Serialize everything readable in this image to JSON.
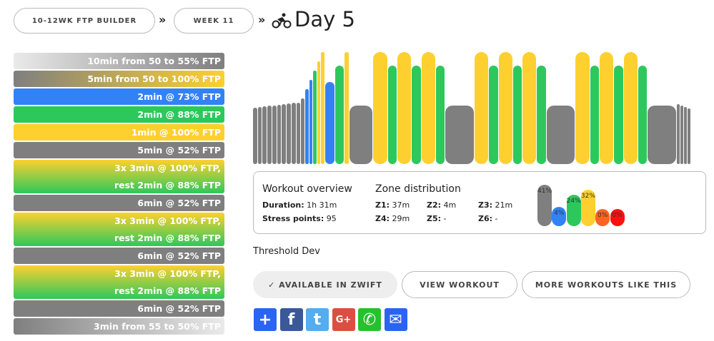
{
  "breadcrumb": {
    "plan": "10-12WK FTP BUILDER",
    "week": "WEEK 11",
    "sep": "»",
    "day": "Day 5"
  },
  "steps": [
    {
      "lines": [
        "10min from 50 to 55% FTP"
      ],
      "bg": "linear-gradient(90deg,#eaeaea,#7f7f7f)"
    },
    {
      "lines": [
        "5min from 50 to 100% FTP"
      ],
      "bg": "linear-gradient(90deg,#7f7f7f,#fdd02f)"
    },
    {
      "lines": [
        "2min @ 73% FTP"
      ],
      "bg": "#3282f6"
    },
    {
      "lines": [
        "2min @ 88% FTP"
      ],
      "bg": "#2dc85c"
    },
    {
      "lines": [
        "1min @ 100% FTP"
      ],
      "bg": "#fdd02f"
    },
    {
      "lines": [
        "5min @ 52% FTP"
      ],
      "bg": "#7f7f7f"
    },
    {
      "lines": [
        "3x 3min @ 100% FTP,",
        "rest 2min @ 88% FTP"
      ],
      "bg": "linear-gradient(180deg,#fdd02f,#2dc85c)"
    },
    {
      "lines": [
        "6min @ 52% FTP"
      ],
      "bg": "#7f7f7f"
    },
    {
      "lines": [
        "3x 3min @ 100% FTP,",
        "rest 2min @ 88% FTP"
      ],
      "bg": "linear-gradient(180deg,#fdd02f,#2dc85c)"
    },
    {
      "lines": [
        "6min @ 52% FTP"
      ],
      "bg": "#7f7f7f"
    },
    {
      "lines": [
        "3x 3min @ 100% FTP,",
        "rest 2min @ 88% FTP"
      ],
      "bg": "linear-gradient(180deg,#fdd02f,#2dc85c)"
    },
    {
      "lines": [
        "6min @ 52% FTP"
      ],
      "bg": "#7f7f7f"
    },
    {
      "lines": [
        "3min from 55 to 50% FTP"
      ],
      "bg": "linear-gradient(90deg,#7f7f7f,#eaeaea)"
    }
  ],
  "workout_profile": [
    {
      "min": 10,
      "from": 50,
      "to": 55,
      "steps": 10
    },
    {
      "min": 5,
      "from": 50,
      "to": 100,
      "steps": 6
    },
    {
      "min": 2,
      "pct": 73
    },
    {
      "min": 2,
      "pct": 88
    },
    {
      "min": 1,
      "pct": 100
    },
    {
      "min": 5,
      "pct": 52
    },
    {
      "min": 3,
      "pct": 100
    },
    {
      "min": 2,
      "pct": 88
    },
    {
      "min": 3,
      "pct": 100
    },
    {
      "min": 2,
      "pct": 88
    },
    {
      "min": 3,
      "pct": 100
    },
    {
      "min": 2,
      "pct": 88
    },
    {
      "min": 6,
      "pct": 52
    },
    {
      "min": 3,
      "pct": 100
    },
    {
      "min": 2,
      "pct": 88
    },
    {
      "min": 3,
      "pct": 100
    },
    {
      "min": 2,
      "pct": 88
    },
    {
      "min": 3,
      "pct": 100
    },
    {
      "min": 2,
      "pct": 88
    },
    {
      "min": 6,
      "pct": 52
    },
    {
      "min": 3,
      "pct": 100
    },
    {
      "min": 2,
      "pct": 88
    },
    {
      "min": 3,
      "pct": 100
    },
    {
      "min": 2,
      "pct": 88
    },
    {
      "min": 3,
      "pct": 100
    },
    {
      "min": 2,
      "pct": 88
    },
    {
      "min": 6,
      "pct": 52
    },
    {
      "min": 3,
      "from": 55,
      "to": 50,
      "steps": 4
    }
  ],
  "zone_colors": {
    "z1": "#7f7f7f",
    "z2": "#3282f6",
    "z3": "#2dc85c",
    "z4": "#fdd02f",
    "z5": "#fd6421",
    "z6": "#ff1010"
  },
  "overview": {
    "title": "Workout overview",
    "duration_label": "Duration:",
    "duration": "1h 31m",
    "stress_label": "Stress points:",
    "stress": "95",
    "zone_title": "Zone distribution",
    "zones": [
      {
        "k": "Z1:",
        "v": "37m"
      },
      {
        "k": "Z2:",
        "v": "4m"
      },
      {
        "k": "Z3:",
        "v": "21m"
      },
      {
        "k": "Z4:",
        "v": "29m"
      },
      {
        "k": "Z5:",
        "v": "-"
      },
      {
        "k": "Z6:",
        "v": "-"
      }
    ],
    "dist": [
      {
        "label": "41%",
        "pct": 41,
        "color": "#7f7f7f"
      },
      {
        "label": "4%",
        "pct": 4,
        "color": "#3282f6"
      },
      {
        "label": "24%",
        "pct": 24,
        "color": "#2dc85c"
      },
      {
        "label": "32%",
        "pct": 32,
        "color": "#fdd02f"
      },
      {
        "label": "0%",
        "pct": 0,
        "color": "#fd6421"
      },
      {
        "label": "0%",
        "pct": 0,
        "color": "#ff1010"
      }
    ]
  },
  "category": "Threshold Dev",
  "buttons": {
    "zwift": "✓ AVAILABLE IN ZWIFT",
    "view": "VIEW WORKOUT",
    "more": "MORE WORKOUTS LIKE THIS"
  },
  "share": [
    {
      "name": "share-plus",
      "glyph": "+",
      "color": "#2b63f2"
    },
    {
      "name": "facebook",
      "glyph": "f",
      "color": "#3b5998"
    },
    {
      "name": "twitter",
      "glyph": "t",
      "color": "#55acee"
    },
    {
      "name": "google-plus",
      "glyph": "G+",
      "color": "#dc4e41"
    },
    {
      "name": "whatsapp",
      "glyph": "✆",
      "color": "#25c12f"
    },
    {
      "name": "email",
      "glyph": "✉",
      "color": "#2b63f2"
    }
  ]
}
